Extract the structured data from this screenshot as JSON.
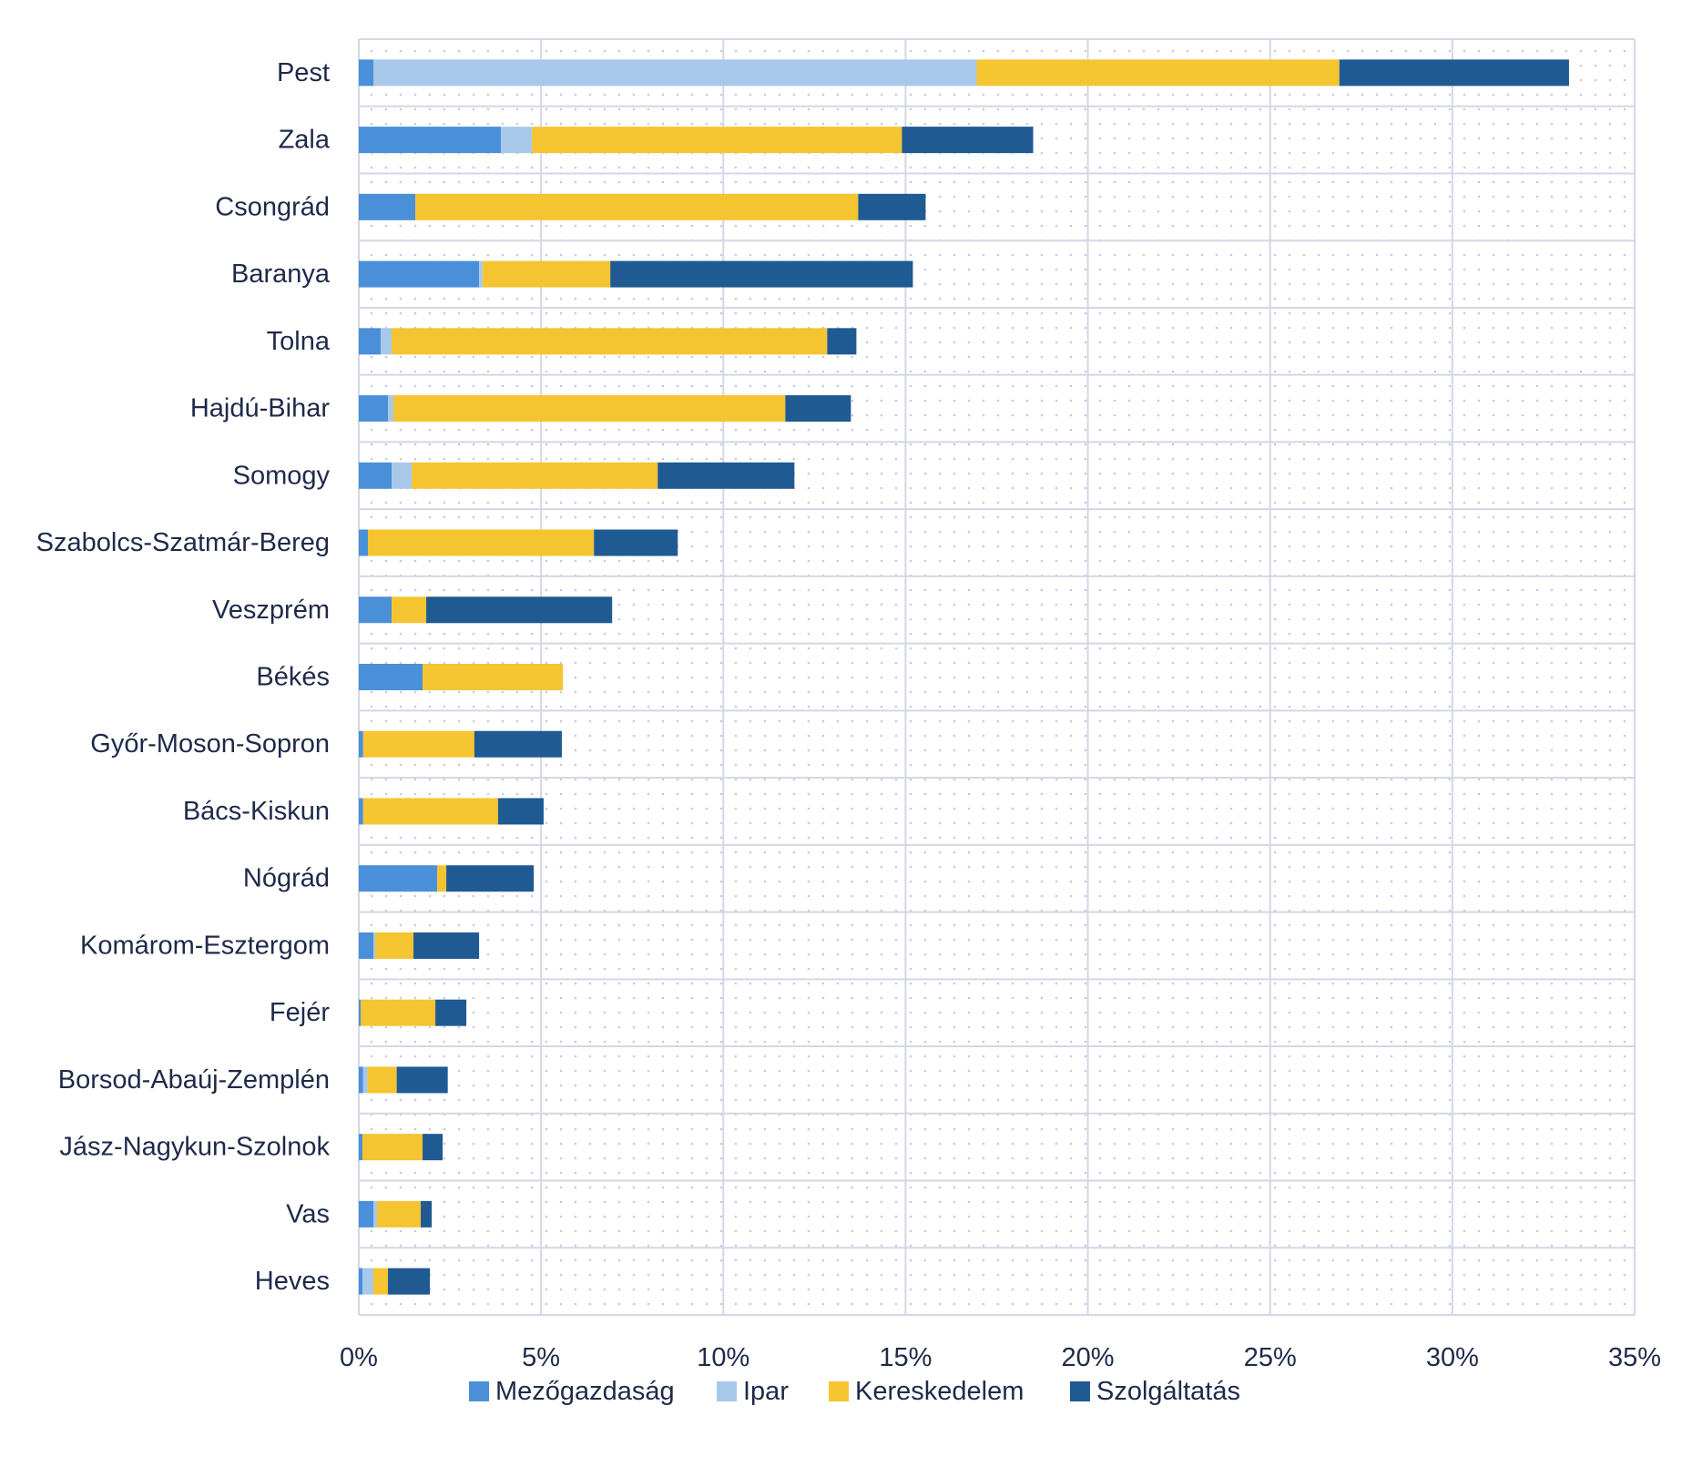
{
  "chart_data": {
    "type": "bar",
    "orientation": "horizontal",
    "stacked": true,
    "title": "",
    "xlabel": "",
    "ylabel": "",
    "xlim": [
      0,
      35
    ],
    "x_ticks": [
      0,
      5,
      10,
      15,
      20,
      25,
      30,
      35
    ],
    "x_tick_labels": [
      "0%",
      "5%",
      "10%",
      "15%",
      "20%",
      "25%",
      "30%",
      "35%"
    ],
    "grid": true,
    "legend_position": "bottom",
    "categories": [
      "Pest",
      "Zala",
      "Csongrád",
      "Baranya",
      "Tolna",
      "Hajdú-Bihar",
      "Somogy",
      "Szabolcs-Szatmár-Bereg",
      "Veszprém",
      "Békés",
      "Győr-Moson-Sopron",
      "Bács-Kiskun",
      "Nógrád",
      "Komárom-Esztergom",
      "Fejér",
      "Borsod-Abaúj-Zemplén",
      "Jász-Nagykun-Szolnok",
      "Vas",
      "Heves"
    ],
    "series": [
      {
        "name": "Mezőgazdaság",
        "color": "#4a90d9",
        "values": [
          0.4,
          3.9,
          1.55,
          3.3,
          0.6,
          0.8,
          0.9,
          0.25,
          0.9,
          1.75,
          0.12,
          0.12,
          2.15,
          0.4,
          0.05,
          0.12,
          0.1,
          0.4,
          0.1
        ]
      },
      {
        "name": "Ipar",
        "color": "#a8c8ea",
        "values": [
          16.55,
          0.85,
          0.0,
          0.1,
          0.3,
          0.15,
          0.55,
          0.0,
          0.0,
          0.0,
          0.0,
          0.0,
          0.0,
          0.05,
          0.0,
          0.12,
          0.0,
          0.1,
          0.3
        ]
      },
      {
        "name": "Kereskedelem",
        "color": "#f5c431",
        "values": [
          9.95,
          10.15,
          12.15,
          3.5,
          11.95,
          10.75,
          6.75,
          6.2,
          0.95,
          3.85,
          3.05,
          3.7,
          0.25,
          1.05,
          2.05,
          0.8,
          1.65,
          1.2,
          0.4
        ]
      },
      {
        "name": "Szolgáltatás",
        "color": "#1f5a93",
        "values": [
          6.3,
          3.6,
          1.85,
          8.3,
          0.8,
          1.8,
          3.75,
          2.3,
          5.1,
          0.0,
          2.4,
          1.25,
          2.4,
          1.8,
          0.85,
          1.4,
          0.55,
          0.3,
          1.15
        ]
      }
    ]
  }
}
